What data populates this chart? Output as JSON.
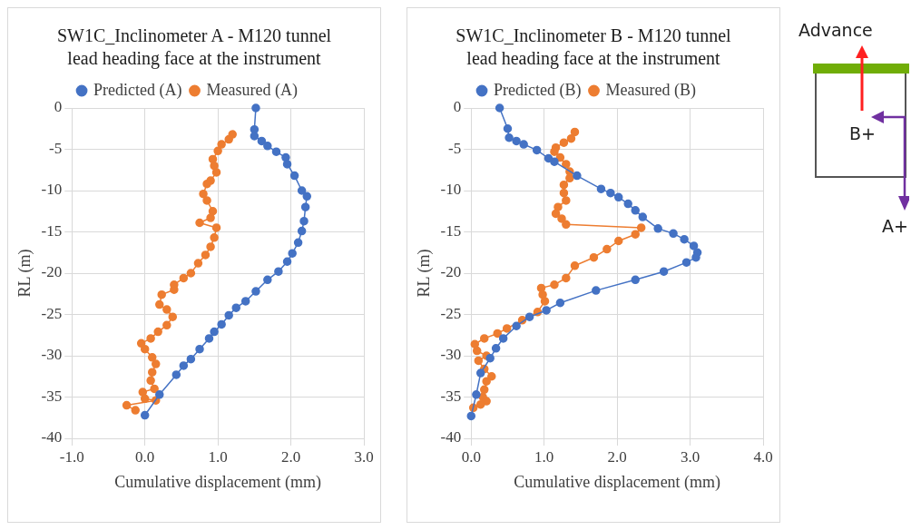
{
  "chart_data": [
    {
      "type": "line",
      "title": "SW1C_Inclinometer A - M120 tunnel lead heading face at the instrument",
      "xlabel": "Cumulative displacement (mm)",
      "ylabel": "RL (m)",
      "xlim": [
        -1,
        3
      ],
      "xticks": [
        {
          "value": -1,
          "label": "-1.0"
        },
        {
          "value": 0,
          "label": "0.0"
        },
        {
          "value": 1,
          "label": "1.0"
        },
        {
          "value": 2,
          "label": "2.0"
        },
        {
          "value": 3,
          "label": "3.0"
        }
      ],
      "ylim": [
        -40,
        0
      ],
      "yticks": [
        -40,
        -35,
        -30,
        -25,
        -20,
        -15,
        -10,
        -5,
        0
      ],
      "grid": true,
      "legend": "top",
      "marker": "circle",
      "line_style": "solid",
      "series": [
        {
          "name": "Predicted (A)",
          "color": "#4472c4",
          "x": [
            1.52,
            1.5,
            1.5,
            1.6,
            1.68,
            1.8,
            1.93,
            1.95,
            2.05,
            2.15,
            2.22,
            2.2,
            2.18,
            2.15,
            2.1,
            2.02,
            1.95,
            1.83,
            1.68,
            1.52,
            1.38,
            1.25,
            1.15,
            1.05,
            0.95,
            0.88,
            0.75,
            0.63,
            0.53,
            0.43,
            0.2,
            0
          ],
          "values": [
            0,
            -2.6,
            -3.4,
            -4,
            -4.6,
            -5.3,
            -6,
            -6.8,
            -8.2,
            -10,
            -10.7,
            -12,
            -13.7,
            -14.9,
            -16.3,
            -17.6,
            -18.6,
            -19.8,
            -20.8,
            -22.2,
            -23.4,
            -24.2,
            -25.1,
            -26.2,
            -27.1,
            -27.9,
            -29.2,
            -30.4,
            -31.2,
            -32.3,
            -34.7,
            -37.2
          ]
        },
        {
          "name": "Measured (A)",
          "color": "#ed7d31",
          "x": [
            1.2,
            1.15,
            1.05,
            1,
            0.93,
            0.95,
            0.98,
            0.9,
            0.85,
            0.8,
            0.85,
            0.93,
            0.9,
            0.75,
            0.98,
            0.95,
            0.9,
            0.83,
            0.73,
            0.63,
            0.53,
            0.4,
            0.4,
            0.23,
            0.2,
            0.3,
            0.38,
            0.3,
            0.18,
            0.08,
            -0.05,
            0,
            0.1,
            0.15,
            0.1,
            0.08,
            0.13,
            -0.03,
            0,
            0.15,
            -0.25,
            -0.13
          ],
          "values": [
            -3.2,
            -3.8,
            -4.4,
            -5.2,
            -6.2,
            -7,
            -7.8,
            -8.8,
            -9.2,
            -10.4,
            -11.2,
            -12.5,
            -13.3,
            -13.9,
            -14.5,
            -15.7,
            -16.8,
            -17.8,
            -18.8,
            -20,
            -20.6,
            -21.4,
            -22,
            -22.6,
            -23.8,
            -24.4,
            -25.3,
            -26.3,
            -27.1,
            -27.9,
            -28.5,
            -29.2,
            -30.2,
            -31,
            -32,
            -33,
            -34,
            -34.4,
            -35.2,
            -35.4,
            -36,
            -36.6
          ]
        }
      ]
    },
    {
      "type": "line",
      "title": "SW1C_Inclinometer B - M120 tunnel lead heading face at the instrument",
      "xlabel": "Cumulative displacement (mm)",
      "ylabel": "RL (m)",
      "xlim": [
        0,
        4
      ],
      "xticks": [
        {
          "value": 0,
          "label": "0.0"
        },
        {
          "value": 1,
          "label": "1.0"
        },
        {
          "value": 2,
          "label": "2.0"
        },
        {
          "value": 3,
          "label": "3.0"
        },
        {
          "value": 4,
          "label": "4.0"
        }
      ],
      "ylim": [
        -40,
        0
      ],
      "yticks": [
        -40,
        -35,
        -30,
        -25,
        -20,
        -15,
        -10,
        -5,
        0
      ],
      "grid": true,
      "legend": "top",
      "marker": "circle",
      "line_style": "solid",
      "series": [
        {
          "name": "Predicted (B)",
          "color": "#4472c4",
          "x": [
            0.39,
            0.5,
            0.52,
            0.62,
            0.72,
            0.9,
            1.06,
            1.14,
            1.45,
            1.78,
            1.91,
            2.02,
            2.15,
            2.25,
            2.35,
            2.56,
            2.77,
            2.92,
            3.05,
            3.1,
            3.08,
            2.95,
            2.64,
            2.25,
            1.71,
            1.22,
            1.03,
            0.8,
            0.62,
            0.44,
            0.34,
            0.26,
            0.13,
            0.07,
            0
          ],
          "values": [
            0,
            -2.5,
            -3.6,
            -4,
            -4.4,
            -5.1,
            -6.1,
            -6.5,
            -8.2,
            -9.8,
            -10.3,
            -10.8,
            -11.6,
            -12.4,
            -13.2,
            -14.6,
            -15.2,
            -15.9,
            -16.7,
            -17.5,
            -18.1,
            -18.7,
            -19.8,
            -20.8,
            -22.1,
            -23.6,
            -24.5,
            -25.3,
            -26.4,
            -27.9,
            -29.1,
            -30.3,
            -32.1,
            -34.7,
            -37.3
          ]
        },
        {
          "name": "Measured (B)",
          "color": "#ed7d31",
          "x": [
            1.42,
            1.37,
            1.27,
            1.16,
            1.14,
            1.22,
            1.3,
            1.35,
            1.35,
            1.27,
            1.27,
            1.3,
            1.19,
            1.16,
            1.24,
            1.3,
            2.33,
            2.25,
            2.02,
            1.86,
            1.68,
            1.42,
            1.3,
            1.14,
            0.96,
            0.98,
            1.01,
            0.91,
            0.7,
            0.49,
            0.36,
            0.18,
            0.05,
            0.08,
            0.21,
            0.1,
            0.18,
            0.28,
            0.21,
            0.18,
            0.16,
            0.21,
            0.13,
            0.03
          ],
          "values": [
            -2.9,
            -3.7,
            -4.2,
            -4.8,
            -5.3,
            -6,
            -6.8,
            -7.7,
            -8.5,
            -9.3,
            -10.3,
            -11.2,
            -12,
            -12.8,
            -13.4,
            -14.1,
            -14.5,
            -15.3,
            -16.1,
            -17.1,
            -18.1,
            -19.1,
            -20.6,
            -21.4,
            -21.8,
            -22.6,
            -23.4,
            -24.7,
            -25.7,
            -26.7,
            -27.3,
            -27.9,
            -28.6,
            -29.4,
            -30,
            -30.6,
            -31.6,
            -32.5,
            -33.1,
            -34.1,
            -35,
            -35.5,
            -35.9,
            -36.3
          ]
        }
      ]
    },
    {
      "type": "other",
      "annotations": [
        "Advance",
        "B+",
        "A+"
      ]
    }
  ]
}
